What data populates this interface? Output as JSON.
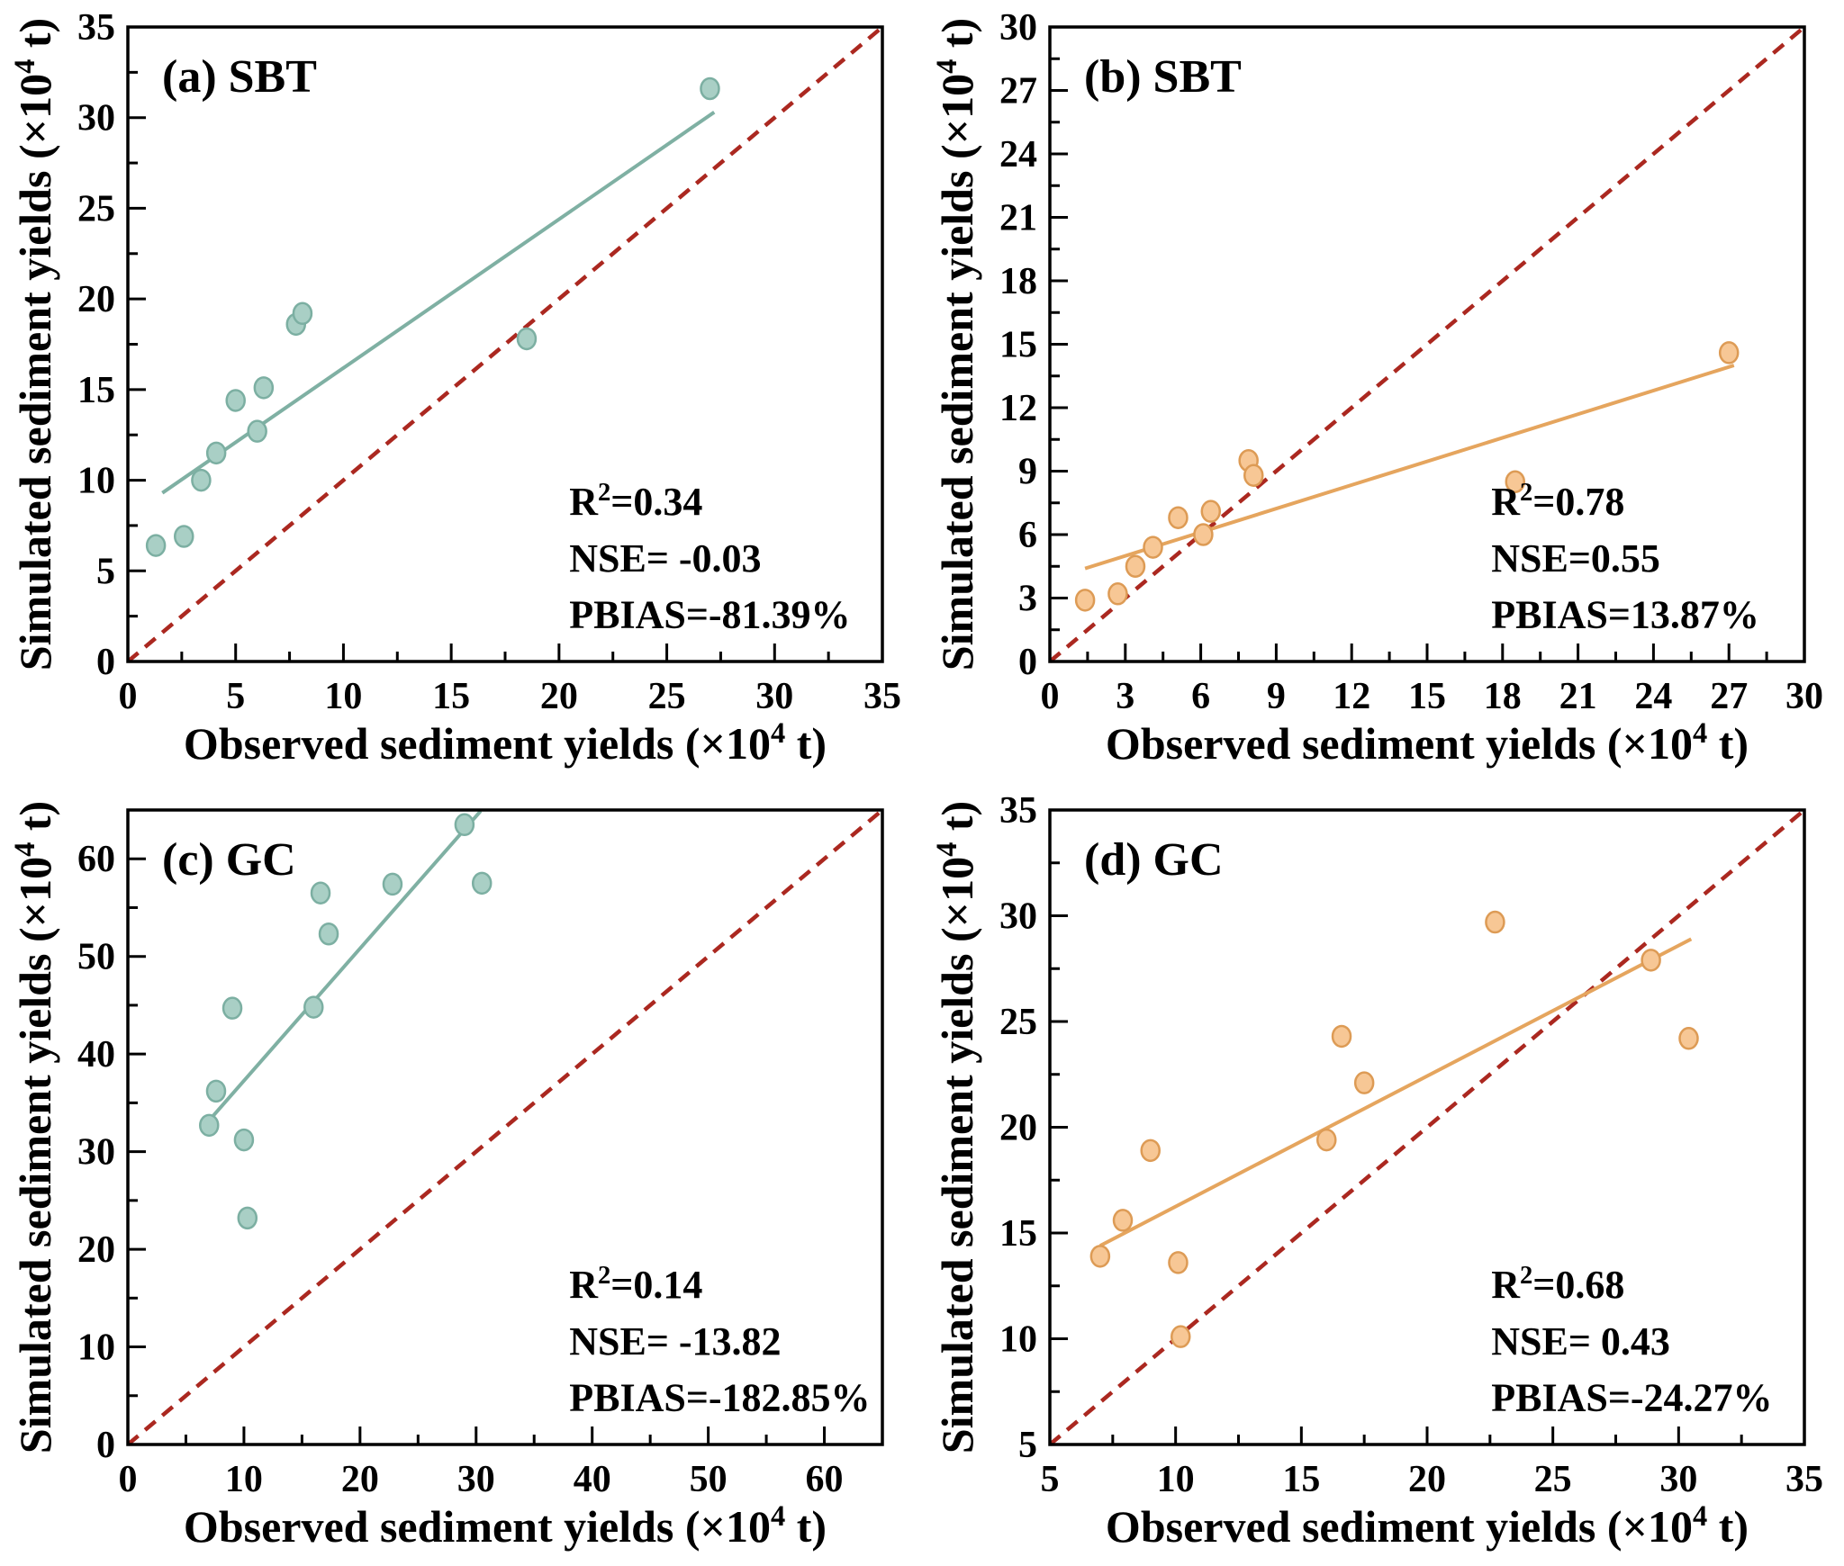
{
  "figure": {
    "background": "#ffffff",
    "ink": "#000000",
    "identity_color": "#ab2820",
    "x_axis_title": {
      "prefix": "Observed sediment yields (×10",
      "sup": "4",
      "suffix": " t)"
    },
    "y_axis_title": {
      "prefix": "Simulated sediment yields (×10",
      "sup": "4",
      "suffix": " t)"
    }
  },
  "chart_data": [
    {
      "id": "a",
      "type": "scatter",
      "title": "(a) SBT",
      "x_range": [
        0,
        35
      ],
      "y_range": [
        0,
        35
      ],
      "x_ticks": [
        0,
        5,
        10,
        15,
        20,
        25,
        30,
        35
      ],
      "y_ticks": [
        0,
        5,
        10,
        15,
        20,
        25,
        30,
        35
      ],
      "minor_step": 2.5,
      "grid": false,
      "points": [
        [
          1.3,
          6.4
        ],
        [
          2.6,
          6.9
        ],
        [
          3.4,
          10.0
        ],
        [
          4.1,
          11.5
        ],
        [
          5.0,
          14.4
        ],
        [
          6.0,
          12.7
        ],
        [
          6.3,
          15.1
        ],
        [
          7.8,
          18.6
        ],
        [
          8.1,
          19.2
        ],
        [
          18.5,
          17.8
        ],
        [
          27.0,
          31.6
        ]
      ],
      "fit_line": [
        [
          1.6,
          9.3
        ],
        [
          27.2,
          30.3
        ]
      ],
      "identity_line": [
        [
          0,
          0
        ],
        [
          35,
          35
        ]
      ],
      "series_color": {
        "fill": "#a9cfc5",
        "edge": "#7cafa2",
        "line": "#7fb0a3"
      },
      "stats": {
        "r2_base": "R",
        "r2_sup": "2",
        "r2_rest": "=0.34",
        "nse": "NSE= -0.03",
        "pbias": "PBIAS=-81.39%"
      }
    },
    {
      "id": "b",
      "type": "scatter",
      "title": "(b) SBT",
      "x_range": [
        0,
        30
      ],
      "y_range": [
        0,
        30
      ],
      "x_ticks": [
        0,
        3,
        6,
        9,
        12,
        15,
        18,
        21,
        24,
        27,
        30
      ],
      "y_ticks": [
        0,
        3,
        6,
        9,
        12,
        15,
        18,
        21,
        24,
        27,
        30
      ],
      "minor_step": 1.5,
      "grid": false,
      "points": [
        [
          1.4,
          2.9
        ],
        [
          2.7,
          3.2
        ],
        [
          3.4,
          4.5
        ],
        [
          4.1,
          5.4
        ],
        [
          5.1,
          6.8
        ],
        [
          6.1,
          6.0
        ],
        [
          6.4,
          7.1
        ],
        [
          7.9,
          9.5
        ],
        [
          8.1,
          8.8
        ],
        [
          18.5,
          8.5
        ],
        [
          27.0,
          14.6
        ]
      ],
      "fit_line": [
        [
          1.4,
          4.4
        ],
        [
          27.2,
          14.0
        ]
      ],
      "identity_line": [
        [
          0,
          0
        ],
        [
          30,
          30
        ]
      ],
      "series_color": {
        "fill": "#f7c795",
        "edge": "#dd9b55",
        "line": "#e5a55e"
      },
      "stats": {
        "r2_base": "R",
        "r2_sup": "2",
        "r2_rest": "=0.78",
        "nse": "NSE=0.55",
        "pbias": "PBIAS=13.87%"
      }
    },
    {
      "id": "c",
      "type": "scatter",
      "title": "(c) GC",
      "x_range": [
        0,
        65
      ],
      "y_range": [
        0,
        65
      ],
      "x_ticks": [
        0,
        10,
        20,
        30,
        40,
        50,
        60
      ],
      "y_ticks": [
        0,
        10,
        20,
        30,
        40,
        50,
        60
      ],
      "minor_step": 5,
      "grid": false,
      "points": [
        [
          7.0,
          32.7
        ],
        [
          7.6,
          36.2
        ],
        [
          9.0,
          44.7
        ],
        [
          10.0,
          31.2
        ],
        [
          10.3,
          23.2
        ],
        [
          16.0,
          44.8
        ],
        [
          16.6,
          56.5
        ],
        [
          17.3,
          52.3
        ],
        [
          22.8,
          57.4
        ],
        [
          29.0,
          63.5
        ],
        [
          30.5,
          57.5
        ]
      ],
      "fit_line": [
        [
          7.0,
          33.2
        ],
        [
          30.4,
          64.9
        ]
      ],
      "identity_line": [
        [
          0,
          0
        ],
        [
          65,
          65
        ]
      ],
      "series_color": {
        "fill": "#a9cfc5",
        "edge": "#7cafa2",
        "line": "#7fb0a3"
      },
      "stats": {
        "r2_base": "R",
        "r2_sup": "2",
        "r2_rest": "=0.14",
        "nse": "NSE= -13.82",
        "pbias": "PBIAS=-182.85%"
      }
    },
    {
      "id": "d",
      "type": "scatter",
      "title": "(d) GC",
      "x_range": [
        5,
        35
      ],
      "y_range": [
        5,
        35
      ],
      "x_ticks": [
        5,
        10,
        15,
        20,
        25,
        30,
        35
      ],
      "y_ticks": [
        5,
        10,
        15,
        20,
        25,
        30,
        35
      ],
      "minor_step": 2.5,
      "grid": false,
      "points": [
        [
          7.0,
          13.9
        ],
        [
          7.9,
          15.6
        ],
        [
          9.0,
          18.9
        ],
        [
          10.1,
          13.6
        ],
        [
          10.2,
          10.1
        ],
        [
          16.0,
          19.4
        ],
        [
          16.6,
          24.3
        ],
        [
          17.5,
          22.1
        ],
        [
          22.7,
          29.7
        ],
        [
          28.9,
          27.9
        ],
        [
          30.4,
          24.2
        ]
      ],
      "fit_line": [
        [
          7.0,
          14.4
        ],
        [
          30.5,
          28.9
        ]
      ],
      "identity_line": [
        [
          5,
          5
        ],
        [
          35,
          35
        ]
      ],
      "series_color": {
        "fill": "#f7c795",
        "edge": "#dd9b55",
        "line": "#e5a55e"
      },
      "stats": {
        "r2_base": "R",
        "r2_sup": "2",
        "r2_rest": "=0.68",
        "nse": "NSE= 0.43",
        "pbias": "PBIAS=-24.27%"
      }
    }
  ]
}
